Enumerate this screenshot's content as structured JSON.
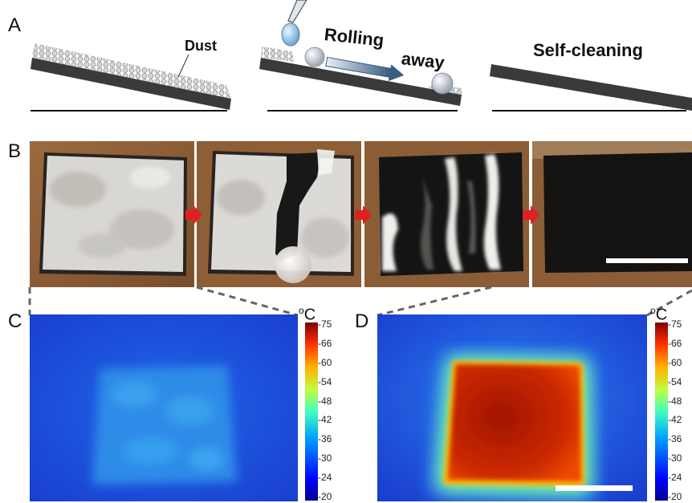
{
  "panels": {
    "A": "A",
    "B": "B",
    "C": "C",
    "D": "D"
  },
  "panelA": {
    "dust_label": "Dust",
    "rolling_label_1": "Rolling",
    "rolling_label_2": "away",
    "self_cleaning_label": "Self-cleaning"
  },
  "thermal": {
    "unit": "oC",
    "unit_symbol": "o",
    "unit_letter": "C",
    "ticks_C": [
      "75",
      "66",
      "60",
      "54",
      "48",
      "42",
      "36",
      "30",
      "24",
      "20"
    ],
    "ticks_D": [
      "75",
      "66",
      "60",
      "54",
      "48",
      "42",
      "36",
      "30",
      "24",
      "20"
    ]
  },
  "colors": {
    "substrate": "#3a3a3a",
    "arrow": "#e02020",
    "cold_blue": "#1f4fd8",
    "hot_red": "#b01a00"
  }
}
